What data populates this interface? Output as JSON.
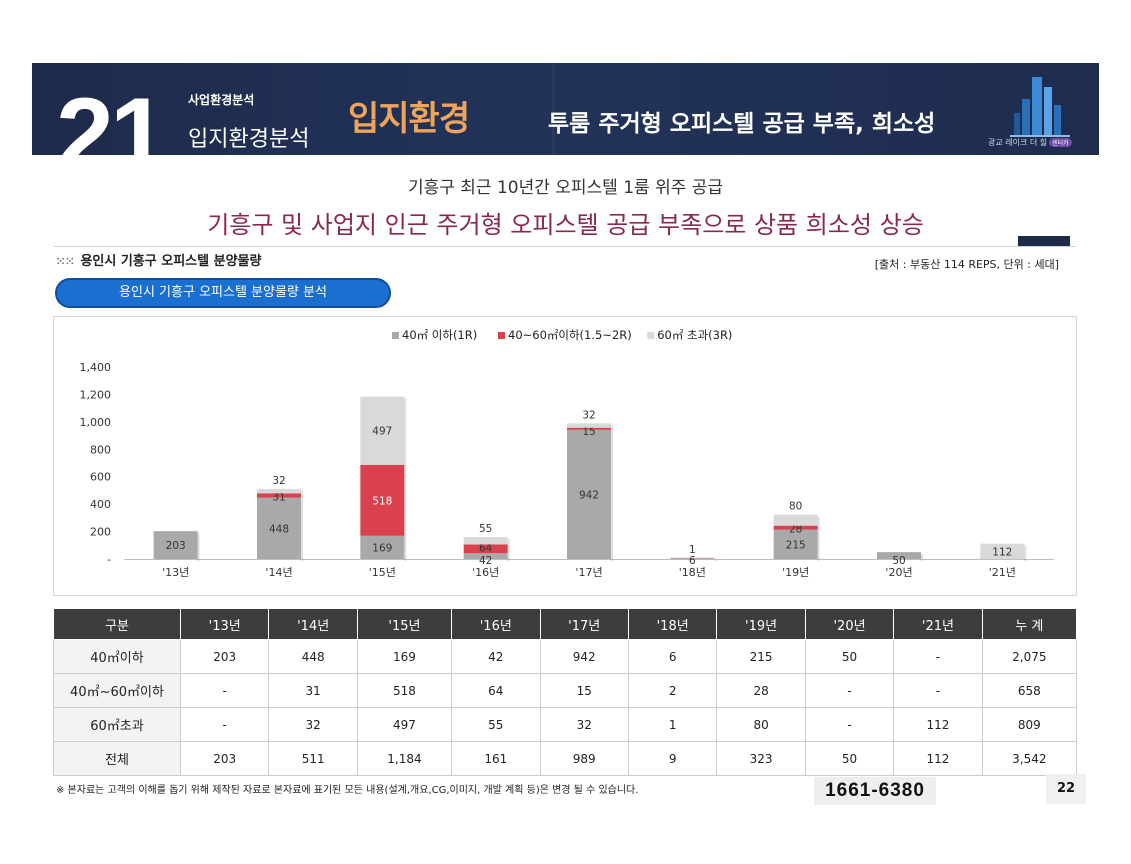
{
  "header": {
    "section_number": "21",
    "category_small": "사업환경분석",
    "category_large": "입지환경분석",
    "highlight": "입지환경",
    "headline": "투룸 주거형 오피스텔 공급 부족, 희소성",
    "logo_text": "광교 레이크 더 힐",
    "logo_badge": "센터카"
  },
  "caption": "기흥구 최근 10년간 오피스텔 1룸 위주 공급",
  "slogan": "기흥구 및 사업지 인근 주거형 오피스텔 공급 부족으로 상품 희소성 상승",
  "section_title": "용인시 기흥구 오피스텔 분양물량",
  "source": "[출처 : 부동산 114 REPS, 단위 : 세대]",
  "pill_label": "용인시 기흥구 오피스텔 분양물량 분석",
  "colors": {
    "navy": "#1d2a4a",
    "orange": "#f0a35a",
    "maroon": "#8b2752",
    "blue": "#1a6fd0",
    "gray_bar": "#a9a9a9",
    "red_bar": "#d9414f",
    "light_bar": "#d9d9d9"
  },
  "chart_data": {
    "type": "bar",
    "stacked": true,
    "categories": [
      "'13년",
      "'14년",
      "'15년",
      "'16년",
      "'17년",
      "'18년",
      "'19년",
      "'20년",
      "'21년"
    ],
    "series": [
      {
        "name": "40㎡ 이하(1R)",
        "color": "#a9a9a9",
        "values": [
          203,
          448,
          169,
          42,
          942,
          6,
          215,
          50,
          0
        ],
        "labels": [
          "203",
          "448",
          "169",
          "42",
          "942",
          "6",
          "215",
          "50",
          ""
        ]
      },
      {
        "name": "40~60㎡이하(1.5~2R)",
        "color": "#d9414f",
        "values": [
          0,
          31,
          518,
          64,
          15,
          2,
          28,
          0,
          0
        ],
        "labels": [
          "",
          "31",
          "518",
          "64",
          "15",
          "",
          "28",
          "",
          ""
        ]
      },
      {
        "name": "60㎡ 초과(3R)",
        "color": "#d9d9d9",
        "values": [
          0,
          32,
          497,
          55,
          32,
          1,
          80,
          0,
          112
        ],
        "labels": [
          "",
          "32",
          "497",
          "55",
          "32",
          "1",
          "80",
          "",
          "112"
        ]
      }
    ],
    "yticks": [
      "1,400",
      "1,200",
      "1,000",
      "800",
      "600",
      "400",
      "200",
      "-"
    ],
    "ylim": [
      0,
      1400
    ],
    "legend": "top",
    "grid": false
  },
  "table": {
    "headers": [
      "구분",
      "'13년",
      "'14년",
      "'15년",
      "'16년",
      "'17년",
      "'18년",
      "'19년",
      "'20년",
      "'21년",
      "누 계"
    ],
    "rows": [
      [
        "40㎡이하",
        "203",
        "448",
        "169",
        "42",
        "942",
        "6",
        "215",
        "50",
        "-",
        "2,075"
      ],
      [
        "40㎡~60㎡이하",
        "-",
        "31",
        "518",
        "64",
        "15",
        "2",
        "28",
        "-",
        "-",
        "658"
      ],
      [
        "60㎡초과",
        "-",
        "32",
        "497",
        "55",
        "32",
        "1",
        "80",
        "-",
        "112",
        "809"
      ],
      [
        "전체",
        "203",
        "511",
        "1,184",
        "161",
        "989",
        "9",
        "323",
        "50",
        "112",
        "3,542"
      ]
    ]
  },
  "footnote": "※ 본자료는 고객의 이해를 돕기 위해 제작된 자료로 본자료에 표기된 모든 내용(설계,개요,CG,이미지, 개발 계획 등)은 변경 될 수 있습니다.",
  "phone": "1661-6380",
  "page_number": "22"
}
